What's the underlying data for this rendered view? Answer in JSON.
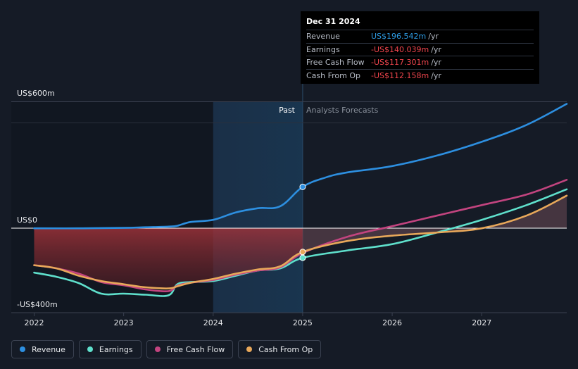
{
  "tooltip": {
    "date": "Dec 31 2024",
    "rows": [
      {
        "name": "Revenue",
        "value": "US$196.542m",
        "unit": "/yr",
        "color": "#2d9be3"
      },
      {
        "name": "Earnings",
        "value": "-US$140.039m",
        "unit": "/yr",
        "color": "#f0454d"
      },
      {
        "name": "Free Cash Flow",
        "value": "-US$117.301m",
        "unit": "/yr",
        "color": "#f0454d"
      },
      {
        "name": "Cash From Op",
        "value": "-US$112.158m",
        "unit": "/yr",
        "color": "#f0454d"
      }
    ]
  },
  "legend": [
    {
      "label": "Revenue",
      "color": "#2d8fe0"
    },
    {
      "label": "Earnings",
      "color": "#5fe0cc"
    },
    {
      "label": "Free Cash Flow",
      "color": "#c2447f"
    },
    {
      "label": "Cash From Op",
      "color": "#e8a85a"
    }
  ],
  "chart_data": {
    "type": "line",
    "y_labels": [
      "US$600m",
      "US$0",
      "-US$400m"
    ],
    "ylim": [
      -400,
      600
    ],
    "xlim": [
      2022.0,
      2027.95
    ],
    "x_ticks": [
      "2022",
      "2023",
      "2024",
      "2025",
      "2026",
      "2027"
    ],
    "past_label": "Past",
    "forecast_label": "Analysts Forecasts",
    "split_x": 2025.0,
    "highlight_start_x": 2024.0,
    "series": [
      {
        "name": "Revenue",
        "color": "#2d8fe0",
        "x": [
          2022.0,
          2022.5,
          2023.0,
          2023.25,
          2023.5,
          2023.6,
          2023.75,
          2024.0,
          2024.25,
          2024.5,
          2024.75,
          2025.0,
          2025.25,
          2025.5,
          2026.0,
          2026.5,
          2027.0,
          2027.5,
          2027.95
        ],
        "y": [
          0,
          0,
          2,
          5,
          8,
          12,
          30,
          40,
          75,
          95,
          105,
          196.5,
          240,
          265,
          295,
          345,
          410,
          490,
          590
        ]
      },
      {
        "name": "Earnings",
        "color": "#5fe0cc",
        "x": [
          2022.0,
          2022.25,
          2022.5,
          2022.75,
          2023.0,
          2023.25,
          2023.5,
          2023.6,
          2023.75,
          2024.0,
          2024.25,
          2024.5,
          2024.75,
          2025.0,
          2025.5,
          2026.0,
          2026.5,
          2027.0,
          2027.5,
          2027.95
        ],
        "y": [
          -210,
          -230,
          -260,
          -310,
          -310,
          -315,
          -318,
          -265,
          -255,
          -250,
          -225,
          -200,
          -190,
          -140,
          -105,
          -75,
          -20,
          40,
          110,
          185
        ]
      },
      {
        "name": "Free Cash Flow",
        "color": "#c2447f",
        "x": [
          2022.0,
          2022.25,
          2022.5,
          2022.75,
          2023.0,
          2023.25,
          2023.5,
          2023.6,
          2023.75,
          2024.0,
          2024.25,
          2024.5,
          2024.75,
          2025.0,
          2025.5,
          2026.0,
          2026.5,
          2027.0,
          2027.5,
          2027.95
        ],
        "y": [
          -175,
          -190,
          -215,
          -255,
          -270,
          -290,
          -298,
          -272,
          -258,
          -245,
          -220,
          -200,
          -185,
          -117.3,
          -40,
          10,
          60,
          110,
          160,
          230
        ]
      },
      {
        "name": "Cash From Op",
        "color": "#e8a85a",
        "x": [
          2022.0,
          2022.25,
          2022.5,
          2022.75,
          2023.0,
          2023.25,
          2023.5,
          2023.6,
          2023.75,
          2024.0,
          2024.25,
          2024.5,
          2024.75,
          2025.0,
          2025.5,
          2026.0,
          2026.5,
          2027.0,
          2027.5,
          2027.95
        ],
        "y": [
          -175,
          -190,
          -225,
          -250,
          -265,
          -280,
          -285,
          -275,
          -258,
          -240,
          -215,
          -195,
          -180,
          -112.2,
          -60,
          -35,
          -20,
          0,
          60,
          155
        ]
      }
    ]
  }
}
